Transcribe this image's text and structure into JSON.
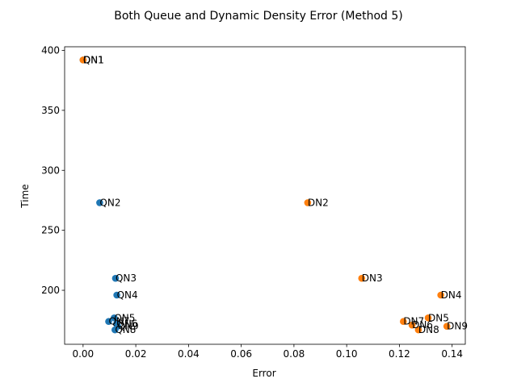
{
  "chart_data": {
    "type": "scatter",
    "title": "Both Queue and Dynamic Density Error (Method 5)",
    "xlabel": "Error",
    "ylabel": "Time",
    "xlim": [
      -0.007,
      0.145
    ],
    "ylim": [
      155,
      403
    ],
    "xticks": [
      0.0,
      0.02,
      0.04,
      0.06,
      0.08,
      0.1,
      0.12,
      0.14
    ],
    "xtick_labels": [
      "0.00",
      "0.02",
      "0.04",
      "0.06",
      "0.08",
      "0.10",
      "0.12",
      "0.14"
    ],
    "yticks": [
      200,
      250,
      300,
      350,
      400
    ],
    "ytick_labels": [
      "200",
      "250",
      "300",
      "350",
      "400"
    ],
    "grid": false,
    "legend": "none",
    "series": [
      {
        "color": "#1f77b4",
        "points": [
          {
            "label": "QN1",
            "x": 0.0,
            "y": 392
          },
          {
            "label": "QN2",
            "x": 0.0063,
            "y": 273
          },
          {
            "label": "QN3",
            "x": 0.0123,
            "y": 210
          },
          {
            "label": "QN4",
            "x": 0.0128,
            "y": 196
          },
          {
            "label": "QN5",
            "x": 0.0118,
            "y": 177
          },
          {
            "label": "QN6",
            "x": 0.0127,
            "y": 172
          },
          {
            "label": "QN7",
            "x": 0.0097,
            "y": 174
          },
          {
            "label": "QN8",
            "x": 0.0121,
            "y": 167
          },
          {
            "label": "QN9",
            "x": 0.0131,
            "y": 170
          }
        ]
      },
      {
        "color": "#ff7f0e",
        "points": [
          {
            "label": "DN1",
            "x": 0.0,
            "y": 392
          },
          {
            "label": "DN2",
            "x": 0.0852,
            "y": 273
          },
          {
            "label": "DN3",
            "x": 0.1057,
            "y": 210
          },
          {
            "label": "DN4",
            "x": 0.1357,
            "y": 196
          },
          {
            "label": "DN5",
            "x": 0.1309,
            "y": 177
          },
          {
            "label": "DN6",
            "x": 0.1248,
            "y": 171
          },
          {
            "label": "DN7",
            "x": 0.1215,
            "y": 174
          },
          {
            "label": "DN8",
            "x": 0.1272,
            "y": 167
          },
          {
            "label": "DN9",
            "x": 0.138,
            "y": 170
          }
        ]
      }
    ]
  }
}
